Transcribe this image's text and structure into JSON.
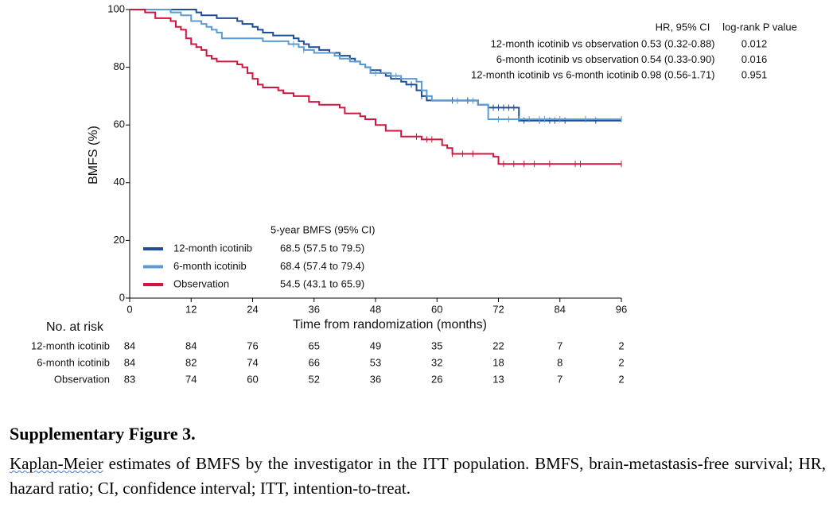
{
  "chart_data": {
    "type": "km",
    "y_label": "BMFS (%)",
    "x_label": "Time from randomization (months)",
    "xlim": [
      0,
      96
    ],
    "xticks": [
      0,
      12,
      24,
      36,
      48,
      60,
      72,
      84,
      96
    ],
    "ylim": [
      0,
      100
    ],
    "yticks": [
      0,
      20,
      40,
      60,
      80,
      100
    ],
    "legend_title": "5-year BMFS (95% CI)",
    "series": [
      {
        "name": "12-month icotinib",
        "color": "#1f4e96",
        "ci": "68.5 (57.5 to 79.5)",
        "x": [
          0,
          13,
          14,
          17,
          21,
          22,
          24,
          25,
          26,
          28,
          32,
          33,
          34,
          35,
          37,
          39,
          41,
          43,
          44,
          45,
          46,
          47,
          49,
          50,
          51,
          53,
          54,
          56,
          57,
          58,
          68,
          70,
          76,
          96
        ],
        "values": [
          100,
          99,
          98,
          97,
          96,
          95,
          94,
          93,
          92,
          91,
          90,
          89,
          88,
          87,
          86,
          85,
          84,
          83,
          82,
          81,
          80,
          79,
          78,
          77,
          76,
          75,
          74,
          72,
          70,
          68.5,
          67,
          66,
          61.5,
          61.5
        ],
        "censor_x": [
          47,
          55,
          57,
          63,
          66,
          70,
          71,
          72,
          73,
          74,
          75,
          77,
          80,
          82,
          83,
          85,
          91
        ]
      },
      {
        "name": "6-month icotinib",
        "color": "#5b9bd5",
        "ci": "68.4 (57.4 to 79.4)",
        "x": [
          0,
          8,
          10,
          12,
          14,
          15,
          16,
          17,
          18,
          26,
          31,
          33,
          34,
          36,
          40,
          41,
          43,
          45,
          46,
          47,
          51,
          53,
          56,
          57,
          58,
          59,
          68,
          70,
          96
        ],
        "values": [
          100,
          99,
          98,
          96,
          95,
          94,
          93,
          92,
          90,
          89,
          88,
          87,
          86,
          85,
          84,
          83,
          82,
          81,
          80,
          78,
          77,
          76,
          75,
          72,
          70,
          68.4,
          67,
          62,
          62
        ],
        "censor_x": [
          32,
          34,
          48,
          52,
          64,
          67,
          72,
          74,
          76,
          78,
          80,
          81,
          84,
          89,
          96
        ]
      },
      {
        "name": "Observation",
        "color": "#d0163f",
        "ci": "54.5 (43.1 to 65.9)",
        "x": [
          0,
          3,
          5,
          8,
          9,
          10,
          11,
          12,
          13,
          14,
          15,
          16,
          17,
          21,
          22,
          23,
          24,
          25,
          26,
          29,
          30,
          32,
          35,
          37,
          41,
          42,
          45,
          46,
          48,
          50,
          53,
          57,
          61,
          62,
          63,
          71,
          72,
          96
        ],
        "values": [
          100,
          99,
          97,
          96,
          94,
          93,
          90,
          88,
          87,
          86,
          84,
          83,
          82,
          81,
          80,
          78,
          76,
          74,
          73,
          72,
          71,
          70,
          68,
          67,
          66,
          64,
          63,
          62,
          60,
          58,
          56,
          55,
          53,
          52,
          50,
          49,
          46.5,
          46.5
        ],
        "censor_x": [
          56,
          58,
          59,
          63,
          65,
          67,
          73,
          75,
          77,
          79,
          82,
          87,
          88,
          96
        ]
      }
    ],
    "hr_table": {
      "header": [
        "HR, 95% CI",
        "log-rank P value"
      ],
      "rows": [
        {
          "label": "12-month icotinib vs observation",
          "hr": "0.53 (0.32-0.88)",
          "p": 0.012
        },
        {
          "label": "6-month icotinib vs observation",
          "hr": "0.54 (0.33-0.90)",
          "p": 0.016
        },
        {
          "label": "12-month icotinib vs 6-month icotinib",
          "hr": "0.98 (0.56-1.71)",
          "p": 0.951
        }
      ]
    },
    "risk_table": {
      "title": "No. at risk",
      "rows": [
        {
          "name": "12-month icotinib",
          "counts": [
            84,
            84,
            76,
            65,
            49,
            35,
            22,
            7,
            2
          ]
        },
        {
          "name": "6-month icotinib",
          "counts": [
            84,
            82,
            74,
            66,
            53,
            32,
            18,
            8,
            2
          ]
        },
        {
          "name": "Observation",
          "counts": [
            83,
            74,
            60,
            52,
            36,
            26,
            13,
            7,
            2
          ]
        }
      ]
    }
  },
  "caption": {
    "title": "Supplementary Figure 3.",
    "lead": "Kaplan-Meier",
    "text": " estimates of BMFS by the investigator in the ITT population. BMFS, brain-metastasis-free survival; HR, hazard ratio; CI, confidence interval; ITT, intention-to-treat."
  }
}
